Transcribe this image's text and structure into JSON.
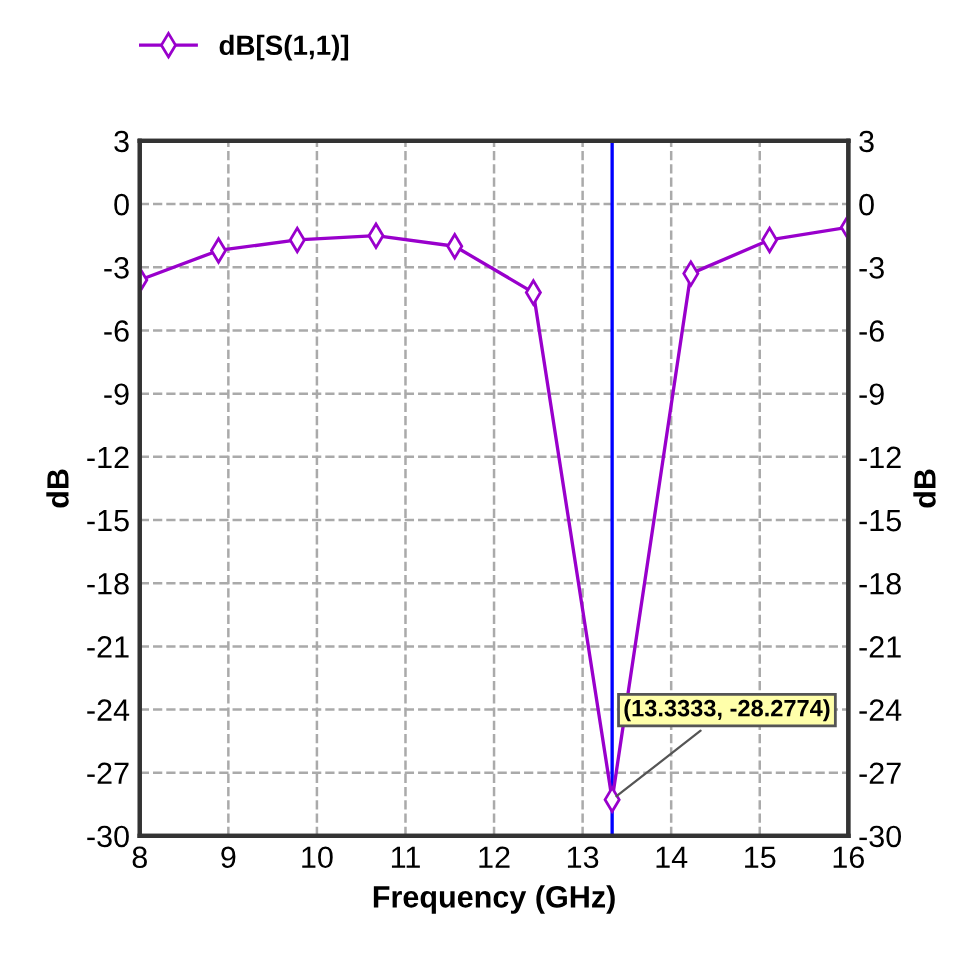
{
  "chart_data": {
    "type": "line",
    "xlabel": "Frequency (GHz)",
    "ylabel": "dB",
    "y2label": "dB",
    "x": [
      8,
      8.889,
      9.778,
      10.667,
      11.556,
      12.444,
      13.3333,
      14.222,
      15.111,
      16
    ],
    "series": [
      {
        "name": "dB[S(1,1)]",
        "color": "#9900cc",
        "values": [
          -3.6,
          -2.2,
          -1.7,
          -1.5,
          -2.0,
          -4.2,
          -28.2774,
          -3.3,
          -1.7,
          -1.1
        ]
      }
    ],
    "xlim": [
      8,
      16
    ],
    "xticks": [
      8,
      9,
      10,
      11,
      12,
      13,
      14,
      15,
      16
    ],
    "ylim": [
      -30,
      3
    ],
    "yticks": [
      -30,
      -27,
      -24,
      -21,
      -18,
      -15,
      -12,
      -9,
      -6,
      -3,
      0,
      3
    ],
    "y2lim": [
      -30,
      3
    ],
    "y2ticks": [
      -30,
      -27,
      -24,
      -21,
      -18,
      -15,
      -12,
      -9,
      -6,
      -3,
      0,
      3
    ],
    "ref_lines": [
      {
        "axis": "x",
        "value": 13.3333,
        "color": "#0000ff"
      }
    ],
    "annotations": [
      {
        "text": "(13.3333, -28.2774)",
        "x": 13.3333,
        "y": -28.2774
      }
    ],
    "grid": true,
    "legend": "top left",
    "marker": "diamond",
    "line_style": "solid"
  }
}
